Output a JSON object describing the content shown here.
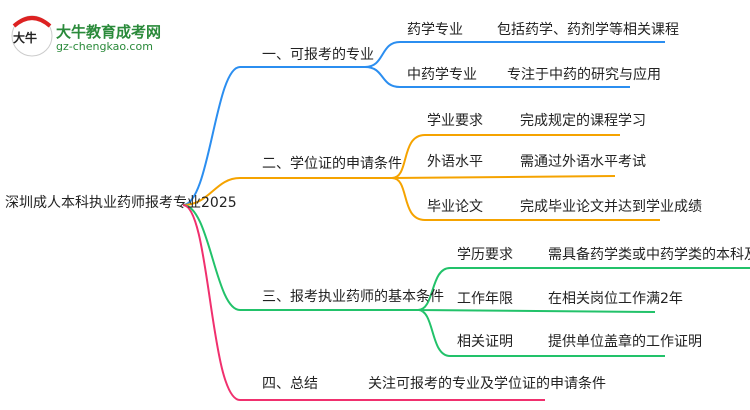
{
  "logo": {
    "name": "大牛教育成考网",
    "url": "gz-chengkao.com",
    "mark": "大牛"
  },
  "colors": {
    "b1": "#2b8ef0",
    "b2": "#f5a300",
    "b3": "#22c26a",
    "b4": "#f0306e"
  },
  "root": "深圳成人本科执业药师报考专业2025",
  "branches": [
    {
      "label": "一、可报考的专业",
      "items": [
        {
          "k": "药学专业",
          "v": "包括药学、药剂学等相关课程"
        },
        {
          "k": "中药学专业",
          "v": "专注于中药的研究与应用"
        }
      ]
    },
    {
      "label": "二、学位证的申请条件",
      "items": [
        {
          "k": "学业要求",
          "v": "完成规定的课程学习"
        },
        {
          "k": "外语水平",
          "v": "需通过外语水平考试"
        },
        {
          "k": "毕业论文",
          "v": "完成毕业论文并达到学业成绩"
        }
      ]
    },
    {
      "label": "三、报考执业药师的基本条件",
      "items": [
        {
          "k": "学历要求",
          "v": "需具备药学类或中药学类的本科及以上学历"
        },
        {
          "k": "工作年限",
          "v": "在相关岗位工作满2年"
        },
        {
          "k": "相关证明",
          "v": "提供单位盖章的工作证明"
        }
      ]
    },
    {
      "label": "四、总结",
      "value": "关注可报考的专业及学位证的申请条件"
    }
  ]
}
